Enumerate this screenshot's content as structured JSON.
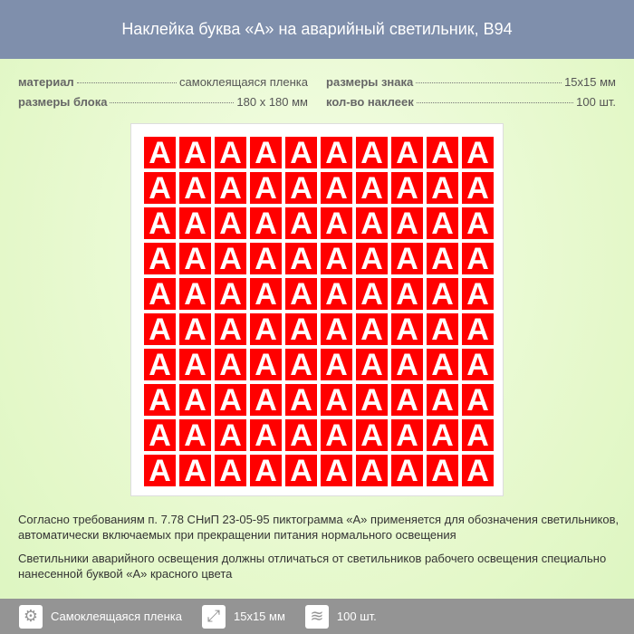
{
  "title": "Наклейка буква «А» на аварийный светильник, В94",
  "specs": {
    "material_label": "материал",
    "material_value": "самоклеящаяся пленка",
    "block_label": "размеры блока",
    "block_value": "180 x 180 мм",
    "sign_label": "размеры знака",
    "sign_value": "15x15 мм",
    "count_label": "кол-во наклеек",
    "count_value": "100 шт."
  },
  "sticker": {
    "letter": "А",
    "rows": 10,
    "cols": 10,
    "color": "#ff0000"
  },
  "description": [
    "Согласно требованиям п. 7.78 СНиП 23-05-95 пиктограмма «А» применяется для обозначения светильников, автоматически включаемых при прекращении питания нормального освещения",
    "Светильники аварийного освещения должны отличаться от светильников рабочего освещения специально нанесенной буквой «А» красного цвета"
  ],
  "footer": [
    {
      "icon": "gear-icon",
      "label": "Самоклеящаяся пленка"
    },
    {
      "icon": "resize-icon",
      "label": "15x15 мм"
    },
    {
      "icon": "layers-icon",
      "label": "100 шт."
    }
  ]
}
